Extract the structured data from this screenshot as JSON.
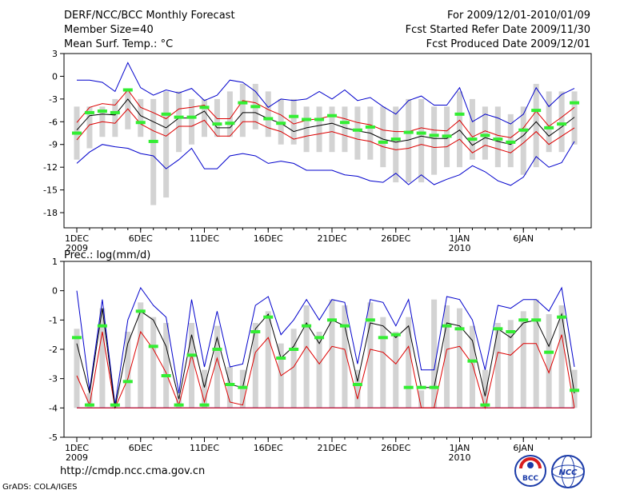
{
  "header": {
    "title": "DERF/NCC/BCC Monthly Forecast",
    "member_size": "Member Size=40",
    "variable": "Mean Surf. Temp.: °C",
    "period": "For 2009/12/01-2010/01/09",
    "start_date": "Fcst Started Refer Date 2009/11/30",
    "produced_date": "Fcst Produced Date 2009/12/01"
  },
  "footer": {
    "url": "http://cmdp.ncc.cma.gov.cn",
    "credit": "GrADS: COLA/IGES",
    "logo1_text": "BCC",
    "logo2_text": "NCC"
  },
  "colors": {
    "bar": "#d3d3d3",
    "max_line": "#0000cc",
    "mean_line": "#000000",
    "band_line": "#dd0000",
    "median_mark": "#33ee33",
    "frame": "#000000"
  },
  "chart_data": [
    {
      "type": "line",
      "title": "Mean Surf. Temp.: °C",
      "ylim": [
        -20,
        3
      ],
      "yticks": [
        "3",
        "0",
        "-3",
        "-6",
        "-9",
        "-12",
        "-15",
        "-18"
      ],
      "xticks": [
        "1DEC",
        "6DEC",
        "11DEC",
        "16DEC",
        "21DEC",
        "26DEC",
        "1JAN",
        "6JAN"
      ],
      "xticks_sub": {
        "1DEC": "2009",
        "1JAN": "2010"
      },
      "x_days": [
        1,
        2,
        3,
        4,
        5,
        6,
        7,
        8,
        9,
        10,
        11,
        12,
        13,
        14,
        15,
        16,
        17,
        18,
        19,
        20,
        21,
        22,
        23,
        24,
        25,
        26,
        27,
        28,
        29,
        30,
        31,
        32,
        33,
        34,
        35,
        36,
        37,
        38,
        39,
        40
      ],
      "bar_low": [
        -11,
        -9.5,
        -8,
        -8,
        -7,
        -8,
        -17,
        -16,
        -10,
        -9,
        -8,
        -8,
        -8,
        -8,
        -7,
        -8,
        -9,
        -9,
        -10,
        -10,
        -10,
        -10,
        -11,
        -11,
        -12,
        -14,
        -14,
        -14,
        -13,
        -12,
        -12,
        -11,
        -11,
        -12,
        -12,
        -13,
        -12,
        -10,
        -10,
        -9
      ],
      "bar_high": [
        -4,
        -4,
        -4,
        -3,
        -2,
        -3,
        -3,
        -2,
        -2,
        -3,
        -3,
        -3,
        -2,
        -1,
        -1,
        -2,
        -3,
        -3,
        -4,
        -4,
        -4,
        -4,
        -4,
        -4,
        -4,
        -4,
        -3,
        -3,
        -4,
        -4,
        -2,
        -3,
        -4,
        -4,
        -5,
        -4,
        -1,
        -2,
        -2,
        -2
      ],
      "max": [
        -0.5,
        -0.5,
        -0.8,
        -2,
        1.8,
        -1.5,
        -2.5,
        -1.8,
        -2.2,
        -1.6,
        -3.2,
        -2.5,
        -0.5,
        -0.8,
        -2,
        -4.1,
        -3,
        -3.2,
        -3,
        -2,
        -3,
        -1.8,
        -3.2,
        -2.8,
        -4,
        -5,
        -3.2,
        -2.6,
        -3.8,
        -3.8,
        -1.5,
        -6,
        -5,
        -5.5,
        -6.3,
        -5,
        -1.5,
        -4,
        -2.4,
        -1.6
      ],
      "mean": [
        -7.1,
        -5.2,
        -5,
        -5.1,
        -3,
        -5.2,
        -6,
        -6.8,
        -5.5,
        -5.5,
        -4.6,
        -6.8,
        -6.8,
        -4.8,
        -4.8,
        -5.6,
        -6.2,
        -7.3,
        -6.8,
        -6.5,
        -6.2,
        -6.8,
        -7.2,
        -7.5,
        -8.3,
        -8.7,
        -8.4,
        -7.9,
        -8.2,
        -8.2,
        -7.1,
        -9.1,
        -8.1,
        -8.6,
        -9,
        -7.8,
        -6,
        -7.9,
        -6.7,
        -5.4
      ],
      "band_upper": [
        -6.1,
        -4.1,
        -3.6,
        -3.8,
        -1.8,
        -4.1,
        -4.8,
        -5.6,
        -4.3,
        -4.1,
        -3.8,
        -5.6,
        -5.6,
        -3.2,
        -3.5,
        -4.4,
        -5.1,
        -6.3,
        -5.8,
        -5.6,
        -5.2,
        -5.6,
        -6.1,
        -6.4,
        -7.1,
        -7.3,
        -7.3,
        -6.8,
        -7.1,
        -7.2,
        -5.8,
        -8,
        -7.2,
        -7.8,
        -8.1,
        -6.8,
        -4.6,
        -6.6,
        -5.4,
        -4.1
      ],
      "band_lower": [
        -8.4,
        -6.4,
        -6,
        -6.2,
        -4.3,
        -6.3,
        -7.2,
        -7.9,
        -6.6,
        -6.6,
        -5.8,
        -7.9,
        -7.9,
        -6,
        -6,
        -6.8,
        -7.3,
        -8.3,
        -7.9,
        -7.6,
        -7.3,
        -7.8,
        -8.3,
        -8.6,
        -9.3,
        -9.7,
        -9.5,
        -9,
        -9.4,
        -9.3,
        -8.3,
        -10.1,
        -9.1,
        -9.6,
        -10.1,
        -8.8,
        -7.3,
        -9,
        -7.9,
        -6.8
      ],
      "min": [
        -11.5,
        -10,
        -9,
        -9.3,
        -9.5,
        -10.2,
        -10.5,
        -12.2,
        -11,
        -9.5,
        -12.2,
        -12.2,
        -10.5,
        -10.2,
        -10.5,
        -11.5,
        -11.2,
        -11.5,
        -12.4,
        -12.4,
        -12.4,
        -13,
        -13.2,
        -13.8,
        -14,
        -12.8,
        -14.3,
        -13,
        -14.3,
        -13.6,
        -13,
        -11.8,
        -12.6,
        -13.8,
        -14.4,
        -13.3,
        -10.6,
        -12,
        -11.4,
        -8.6
      ],
      "median": [
        -7.5,
        -4.8,
        -4.6,
        -4.8,
        -1.8,
        -6.1,
        -8.6,
        -5,
        -5.4,
        -5.4,
        -4.1,
        -6.3,
        -6.2,
        -3.5,
        -4,
        -5.6,
        -6.2,
        -5.3,
        -5.7,
        -5.7,
        -5.2,
        -6.1,
        -7.1,
        -6.7,
        -8.7,
        -8.3,
        -7.4,
        -7.5,
        -7.8,
        -7.9,
        -5,
        -8.3,
        -7.8,
        -8.3,
        -8.7,
        -7.1,
        -4.5,
        -6.8,
        -6.3,
        -3.5
      ]
    },
    {
      "type": "line",
      "title": "Prec.: log(mm/d)",
      "ylim": [
        -5,
        1
      ],
      "yticks": [
        "1",
        "0",
        "-1",
        "-2",
        "-3",
        "-4",
        "-5"
      ],
      "xticks": [
        "1DEC",
        "6DEC",
        "11DEC",
        "16DEC",
        "21DEC",
        "26DEC",
        "1JAN",
        "6JAN"
      ],
      "xticks_sub": {
        "1DEC": "2009",
        "1JAN": "2010"
      },
      "x_days": [
        1,
        2,
        3,
        4,
        5,
        6,
        7,
        8,
        9,
        10,
        11,
        12,
        13,
        14,
        15,
        16,
        17,
        18,
        19,
        20,
        21,
        22,
        23,
        24,
        25,
        26,
        27,
        28,
        29,
        30,
        31,
        32,
        33,
        34,
        35,
        36,
        37,
        38,
        39,
        40
      ],
      "bar_low": [
        -4,
        -4,
        -4,
        -4,
        -4,
        -4,
        -4,
        -4,
        -4,
        -4,
        -4,
        -4,
        -4,
        -4,
        -4,
        -4,
        -4,
        -4,
        -4,
        -4,
        -4,
        -4,
        -4,
        -4,
        -4,
        -4,
        -4,
        -4,
        -4,
        -4,
        -4,
        -4,
        -4,
        -4,
        -4,
        -4,
        -4,
        -4,
        -4,
        -4
      ],
      "bar_high": [
        -1.3,
        -3.5,
        -0.6,
        -3.9,
        -1.4,
        -0.4,
        -0.9,
        -1.1,
        -3.6,
        -1.1,
        -2.7,
        -1.2,
        -2.6,
        -2.7,
        -1.1,
        -0.7,
        -1.8,
        -1.3,
        -0.5,
        -1.4,
        -0.3,
        -0.5,
        -2.7,
        -0.4,
        -0.9,
        -1.4,
        -0.9,
        -3.4,
        -0.3,
        -0.5,
        -0.6,
        -1.2,
        -2.7,
        -1.1,
        -1,
        -0.7,
        -0.3,
        -0.8,
        -0.5,
        -2.7
      ],
      "max": [
        0,
        -3.4,
        -0.3,
        -3.9,
        -1,
        0.1,
        -0.5,
        -0.9,
        -3.5,
        -0.3,
        -2.6,
        -0.7,
        -2.6,
        -2.5,
        -0.5,
        -0.2,
        -1.5,
        -1,
        -0.3,
        -1,
        -0.3,
        -0.4,
        -2.5,
        -0.3,
        -0.4,
        -1.2,
        -0.3,
        -2.7,
        -2.7,
        -0.2,
        -0.3,
        -1,
        -2.7,
        -0.5,
        -0.6,
        -0.3,
        -0.3,
        -0.7,
        0.1,
        -2.6
      ],
      "mean": [
        -1.8,
        -3.5,
        -0.6,
        -4,
        -1.8,
        -0.7,
        -1,
        -1.9,
        -3.7,
        -1.5,
        -3.3,
        -1.6,
        -3.2,
        -3.3,
        -1.3,
        -0.8,
        -2.3,
        -1.9,
        -1.1,
        -1.8,
        -1,
        -1.2,
        -3.1,
        -1.1,
        -1.2,
        -1.6,
        -1.2,
        -3.3,
        -3.3,
        -1.1,
        -1.2,
        -1.7,
        -3.6,
        -1.3,
        -1.6,
        -1.1,
        -1,
        -1.9,
        -0.8,
        -3.5
      ],
      "band_upper": [
        -2.9,
        -3.9,
        -1.4,
        -4,
        -3,
        -1.4,
        -2,
        -2.8,
        -3.9,
        -2.2,
        -3.8,
        -2.3,
        -3.8,
        -3.9,
        -2.1,
        -1.6,
        -2.9,
        -2.6,
        -1.9,
        -2.5,
        -1.9,
        -2,
        -3.7,
        -2,
        -2.1,
        -2.5,
        -1.9,
        -4,
        -4,
        -2,
        -1.9,
        -2.5,
        -4,
        -2.1,
        -2.2,
        -1.8,
        -1.8,
        -2.8,
        -1.5,
        -4
      ],
      "band_lower": [
        -4,
        -4,
        -4,
        -4,
        -4,
        -4,
        -4,
        -4,
        -4,
        -4,
        -4,
        -4,
        -4,
        -4,
        -4,
        -4,
        -4,
        -4,
        -4,
        -4,
        -4,
        -4,
        -4,
        -4,
        -4,
        -4,
        -4,
        -4,
        -4,
        -4,
        -4,
        -4,
        -4,
        -4,
        -4,
        -4,
        -4,
        -4,
        -4,
        -4
      ],
      "min": [
        -4,
        -4,
        -4,
        -4,
        -4,
        -4,
        -4,
        -4,
        -4,
        -4,
        -4,
        -4,
        -4,
        -4,
        -4,
        -4,
        -4,
        -4,
        -4,
        -4,
        -4,
        -4,
        -4,
        -4,
        -4,
        -4,
        -4,
        -4,
        -4,
        -4,
        -4,
        -4,
        -4,
        -4,
        -4,
        -4,
        -4,
        -4,
        -4,
        -4
      ],
      "median": [
        -1.6,
        -3.9,
        -1.2,
        -3.9,
        -3.1,
        -0.7,
        -1.9,
        -2.9,
        -3.9,
        -2.2,
        -3.9,
        -2,
        -3.2,
        -3.3,
        -1.4,
        -0.9,
        -2.3,
        -2,
        -1.2,
        -1.6,
        -1,
        -1.2,
        -3.2,
        -1,
        -1.6,
        -1.5,
        -3.3,
        -3.3,
        -3.3,
        -1.2,
        -1.3,
        -2.4,
        -3.9,
        -1.3,
        -1.4,
        -1,
        -1,
        -2.1,
        -0.9,
        -3.4
      ]
    }
  ]
}
